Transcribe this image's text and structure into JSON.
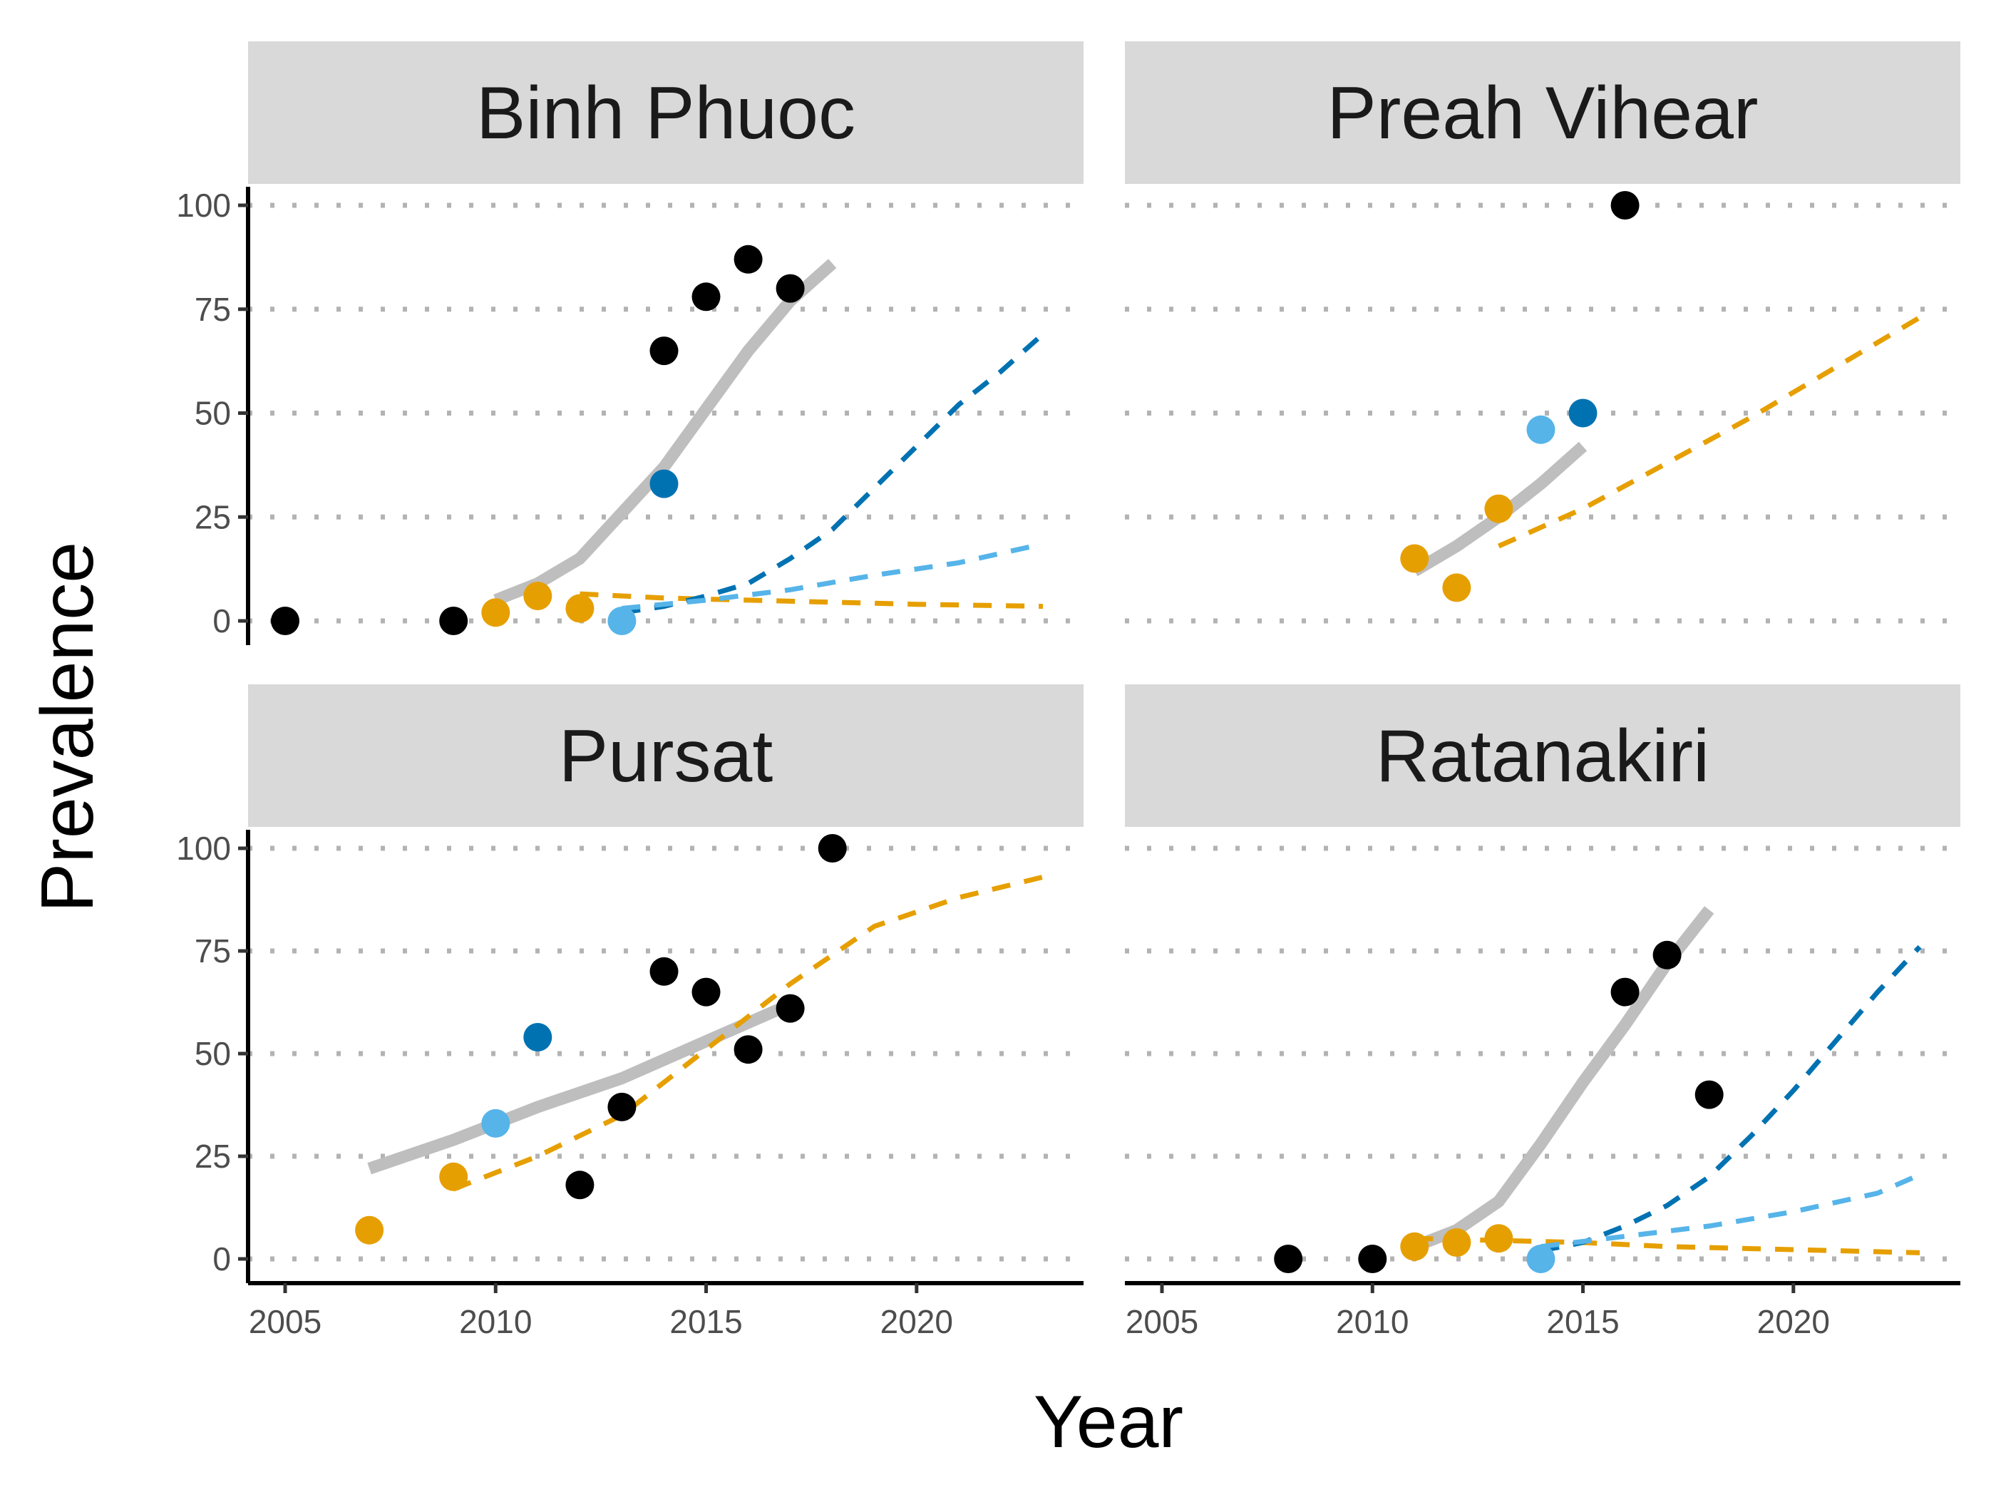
{
  "axes": {
    "xlabel": "Year",
    "ylabel": "Prevalence"
  },
  "colors": {
    "observed_black": "#000000",
    "orange": "#E69F00",
    "light_blue": "#56B4E9",
    "dark_blue": "#0072B2",
    "grey_fit": "#bebebe",
    "strip_bg": "#d9d9d9",
    "grid": "#b3b3b3"
  },
  "chart_data": {
    "type": "scatter",
    "facet_layout": "2x2",
    "xlabel": "Year",
    "ylabel": "Prevalence",
    "xlim": [
      2004,
      2024
    ],
    "ylim": [
      -5,
      105
    ],
    "x_ticks": [
      2005,
      2010,
      2015,
      2020
    ],
    "y_ticks": [
      0,
      25,
      50,
      75,
      100
    ],
    "grid": "horizontal dotted",
    "panels": [
      {
        "title": "Binh Phuoc",
        "points": [
          {
            "color": "black",
            "data": [
              [
                2005,
                0
              ],
              [
                2009,
                0
              ],
              [
                2014,
                65
              ],
              [
                2015,
                78
              ],
              [
                2016,
                87
              ],
              [
                2017,
                80
              ]
            ]
          },
          {
            "color": "orange",
            "data": [
              [
                2010,
                2
              ],
              [
                2011,
                6
              ],
              [
                2012,
                3
              ]
            ]
          },
          {
            "color": "light_blue",
            "data": [
              [
                2013,
                0
              ]
            ]
          },
          {
            "color": "dark_blue",
            "data": [
              [
                2014,
                33
              ]
            ]
          }
        ],
        "lines": [
          {
            "color": "grey_fit",
            "style": "solid",
            "data": [
              [
                2010,
                5
              ],
              [
                2011,
                9
              ],
              [
                2012,
                15
              ],
              [
                2013,
                26
              ],
              [
                2014,
                37
              ],
              [
                2015,
                51
              ],
              [
                2016,
                65
              ],
              [
                2017,
                77
              ],
              [
                2018,
                86
              ]
            ]
          },
          {
            "color": "orange",
            "style": "dashed",
            "data": [
              [
                2012,
                6.5
              ],
              [
                2014,
                5.5
              ],
              [
                2016,
                5
              ],
              [
                2018,
                4.5
              ],
              [
                2020,
                4
              ],
              [
                2023,
                3.5
              ]
            ]
          },
          {
            "color": "dark_blue",
            "style": "dashed",
            "data": [
              [
                2013,
                2
              ],
              [
                2014,
                3.5
              ],
              [
                2015,
                6
              ],
              [
                2016,
                9
              ],
              [
                2017,
                15
              ],
              [
                2018,
                22
              ],
              [
                2019,
                32
              ],
              [
                2020,
                42
              ],
              [
                2021,
                52
              ],
              [
                2022,
                60
              ],
              [
                2023,
                69
              ]
            ]
          },
          {
            "color": "light_blue",
            "style": "dashed",
            "data": [
              [
                2013,
                3
              ],
              [
                2015,
                5
              ],
              [
                2017,
                7.5
              ],
              [
                2019,
                11
              ],
              [
                2021,
                14
              ],
              [
                2023,
                18.5
              ]
            ]
          }
        ]
      },
      {
        "title": "Preah Vihear",
        "points": [
          {
            "color": "black",
            "data": [
              [
                2016,
                100
              ]
            ]
          },
          {
            "color": "orange",
            "data": [
              [
                2011,
                15
              ],
              [
                2012,
                8
              ],
              [
                2013,
                27
              ]
            ]
          },
          {
            "color": "light_blue",
            "data": [
              [
                2014,
                46
              ]
            ]
          },
          {
            "color": "dark_blue",
            "data": [
              [
                2015,
                50
              ]
            ]
          }
        ],
        "lines": [
          {
            "color": "grey_fit",
            "style": "solid",
            "data": [
              [
                2011,
                12
              ],
              [
                2012,
                18
              ],
              [
                2013,
                25
              ],
              [
                2014,
                33
              ],
              [
                2015,
                42
              ]
            ]
          },
          {
            "color": "orange",
            "style": "dashed",
            "data": [
              [
                2013,
                18
              ],
              [
                2015,
                27
              ],
              [
                2017,
                38
              ],
              [
                2019,
                49
              ],
              [
                2021,
                61
              ],
              [
                2023,
                73
              ]
            ]
          }
        ]
      },
      {
        "title": "Pursat",
        "points": [
          {
            "color": "black",
            "data": [
              [
                2012,
                18
              ],
              [
                2013,
                37
              ],
              [
                2014,
                70
              ],
              [
                2015,
                65
              ],
              [
                2016,
                51
              ],
              [
                2017,
                61
              ],
              [
                2018,
                100
              ]
            ]
          },
          {
            "color": "orange",
            "data": [
              [
                2007,
                7
              ],
              [
                2009,
                20
              ]
            ]
          },
          {
            "color": "light_blue",
            "data": [
              [
                2010,
                33
              ]
            ]
          },
          {
            "color": "dark_blue",
            "data": [
              [
                2011,
                54
              ]
            ]
          }
        ],
        "lines": [
          {
            "color": "grey_fit",
            "style": "solid",
            "data": [
              [
                2007,
                22
              ],
              [
                2009,
                29
              ],
              [
                2011,
                37
              ],
              [
                2013,
                44
              ],
              [
                2015,
                53
              ],
              [
                2017,
                62
              ]
            ]
          },
          {
            "color": "orange",
            "style": "dashed",
            "data": [
              [
                2009,
                17
              ],
              [
                2011,
                25
              ],
              [
                2013,
                35
              ],
              [
                2015,
                51
              ],
              [
                2017,
                67
              ],
              [
                2019,
                81
              ],
              [
                2021,
                88
              ],
              [
                2023,
                93
              ]
            ]
          }
        ]
      },
      {
        "title": "Ratanakiri",
        "points": [
          {
            "color": "black",
            "data": [
              [
                2008,
                0
              ],
              [
                2010,
                0
              ],
              [
                2016,
                65
              ],
              [
                2017,
                74
              ],
              [
                2018,
                40
              ]
            ]
          },
          {
            "color": "orange",
            "data": [
              [
                2011,
                3
              ],
              [
                2012,
                4
              ],
              [
                2013,
                5
              ]
            ]
          },
          {
            "color": "light_blue",
            "data": [
              [
                2014,
                0
              ]
            ]
          }
        ],
        "lines": [
          {
            "color": "grey_fit",
            "style": "solid",
            "data": [
              [
                2011,
                3
              ],
              [
                2012,
                7
              ],
              [
                2013,
                14
              ],
              [
                2014,
                28
              ],
              [
                2015,
                43
              ],
              [
                2016,
                57
              ],
              [
                2017,
                72
              ],
              [
                2018,
                85
              ]
            ]
          },
          {
            "color": "orange",
            "style": "dashed",
            "data": [
              [
                2011,
                5
              ],
              [
                2013,
                4.5
              ],
              [
                2015,
                4
              ],
              [
                2017,
                3
              ],
              [
                2019,
                2.5
              ],
              [
                2021,
                2
              ],
              [
                2023,
                1.5
              ]
            ]
          },
          {
            "color": "dark_blue",
            "style": "dashed",
            "data": [
              [
                2014,
                2
              ],
              [
                2015,
                4
              ],
              [
                2016,
                8
              ],
              [
                2017,
                13
              ],
              [
                2018,
                20
              ],
              [
                2019,
                30
              ],
              [
                2020,
                41
              ],
              [
                2021,
                53
              ],
              [
                2022,
                65
              ],
              [
                2023,
                76
              ]
            ]
          },
          {
            "color": "light_blue",
            "style": "dashed",
            "data": [
              [
                2014,
                3
              ],
              [
                2016,
                5.5
              ],
              [
                2018,
                8
              ],
              [
                2020,
                11.5
              ],
              [
                2022,
                16
              ],
              [
                2023,
                20.5
              ]
            ]
          }
        ]
      }
    ]
  }
}
